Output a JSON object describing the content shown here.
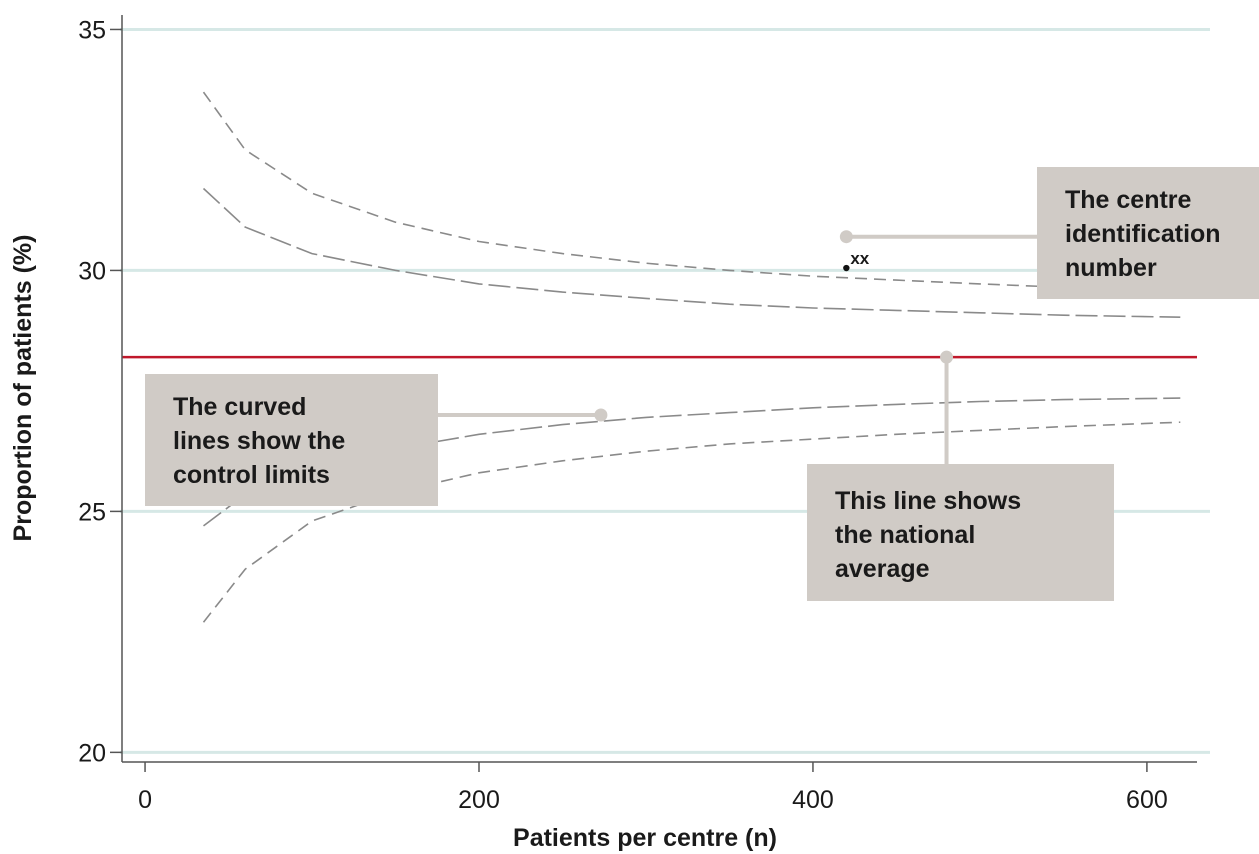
{
  "chart_data": {
    "type": "scatter",
    "title": "",
    "xlabel": "Patients per centre (n)",
    "ylabel": "Proportion of patients (%)",
    "xlim": [
      -15,
      630
    ],
    "ylim": [
      19.8,
      35.3
    ],
    "xticks": [
      0,
      200,
      400,
      600
    ],
    "yticks": [
      20,
      25,
      30,
      35
    ],
    "grid": "horizontal",
    "colors": {
      "gridline": "#d6e8e6",
      "average": "#c0182b",
      "limits": "#8a8a8a",
      "callout": "#d0cbc6"
    },
    "national_average": 28.2,
    "control_limits": [
      {
        "style": "dashed-long",
        "points": [
          [
            35,
            31.7
          ],
          [
            60,
            30.9
          ],
          [
            100,
            30.35
          ],
          [
            150,
            30.0
          ],
          [
            200,
            29.72
          ],
          [
            250,
            29.55
          ],
          [
            300,
            29.42
          ],
          [
            350,
            29.3
          ],
          [
            400,
            29.22
          ],
          [
            450,
            29.17
          ],
          [
            500,
            29.12
          ],
          [
            550,
            29.07
          ],
          [
            620,
            29.03
          ]
        ]
      },
      {
        "style": "dashed-short",
        "points": [
          [
            35,
            33.7
          ],
          [
            60,
            32.5
          ],
          [
            100,
            31.6
          ],
          [
            150,
            31.0
          ],
          [
            200,
            30.6
          ],
          [
            250,
            30.35
          ],
          [
            300,
            30.15
          ],
          [
            350,
            30.0
          ],
          [
            400,
            29.88
          ],
          [
            450,
            29.8
          ],
          [
            500,
            29.72
          ],
          [
            550,
            29.65
          ],
          [
            570,
            29.62
          ]
        ]
      },
      {
        "style": "dashed-long",
        "points": [
          [
            35,
            24.7
          ],
          [
            60,
            25.35
          ],
          [
            100,
            25.9
          ],
          [
            150,
            26.3
          ],
          [
            200,
            26.6
          ],
          [
            250,
            26.8
          ],
          [
            300,
            26.95
          ],
          [
            350,
            27.05
          ],
          [
            400,
            27.15
          ],
          [
            450,
            27.22
          ],
          [
            500,
            27.28
          ],
          [
            550,
            27.32
          ],
          [
            620,
            27.35
          ]
        ]
      },
      {
        "style": "dashed-short",
        "points": [
          [
            35,
            22.7
          ],
          [
            60,
            23.8
          ],
          [
            100,
            24.8
          ],
          [
            150,
            25.4
          ],
          [
            200,
            25.8
          ],
          [
            250,
            26.05
          ],
          [
            300,
            26.25
          ],
          [
            350,
            26.4
          ],
          [
            400,
            26.5
          ],
          [
            450,
            26.6
          ],
          [
            500,
            26.68
          ],
          [
            550,
            26.76
          ],
          [
            620,
            26.85
          ]
        ]
      }
    ],
    "points": [
      {
        "x": 420,
        "y": 30.05,
        "label": "xx"
      }
    ],
    "annotations": [
      {
        "lines": [
          "The centre",
          "identification",
          "number"
        ],
        "box": "right",
        "anchor": [
          420,
          30.7
        ]
      },
      {
        "lines": [
          "The curved",
          "lines show the",
          "control limits"
        ],
        "box": "left",
        "anchor": [
          273,
          27.0
        ]
      },
      {
        "lines": [
          "This line shows",
          "the national",
          "average"
        ],
        "box": "below",
        "anchor": [
          480,
          28.2
        ]
      }
    ]
  }
}
